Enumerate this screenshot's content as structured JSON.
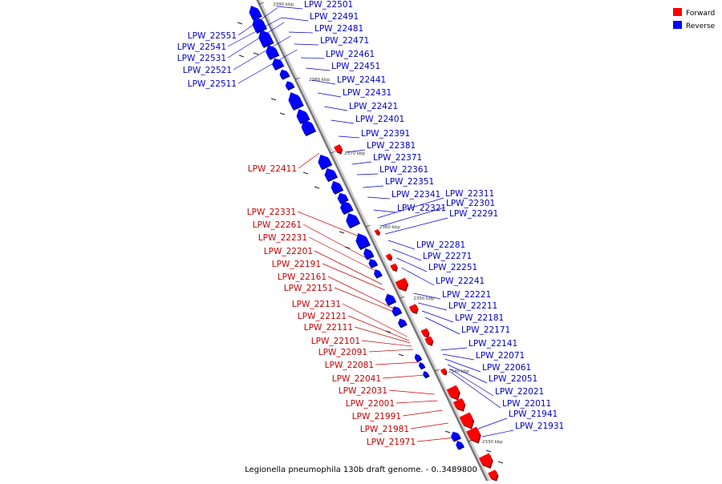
{
  "caption": "Legionella pneumophila 130b draft genome. - 0..3489800",
  "colors": {
    "forward": "#ff0000",
    "reverse": "#0000ff",
    "forward_label": "#c80000",
    "reverse_label": "#0000c8",
    "axis": "#777777",
    "tick": "#000000"
  },
  "legend": {
    "forward": "Forward",
    "reverse": "Reverse"
  },
  "ticks": [
    "2390 kbp",
    "2380 kbp",
    "2370 kbp",
    "2360 kbp",
    "2350 kbp",
    "2340 kbp",
    "2330 kbp"
  ],
  "reverse_genes": [
    "LPW_22551",
    "LPW_22541",
    "LPW_22531",
    "LPW_22521",
    "LPW_22511",
    "LPW_22501",
    "LPW_22491",
    "LPW_22481",
    "LPW_22471",
    "LPW_22461",
    "LPW_22451",
    "LPW_22441",
    "LPW_22431",
    "LPW_22421",
    "LPW_22401",
    "LPW_22391",
    "LPW_22381",
    "LPW_22371",
    "LPW_22361",
    "LPW_22351",
    "LPW_22341",
    "LPW_22321",
    "LPW_22311",
    "LPW_22301",
    "LPW_22291",
    "LPW_22281",
    "LPW_22271",
    "LPW_22251",
    "LPW_22241",
    "LPW_22221",
    "LPW_22211",
    "LPW_22181",
    "LPW_22171",
    "LPW_22141",
    "LPW_22071",
    "LPW_22061",
    "LPW_22051",
    "LPW_22021",
    "LPW_22011",
    "LPW_21941",
    "LPW_21931"
  ],
  "forward_genes": [
    "LPW_22411",
    "LPW_22331",
    "LPW_22261",
    "LPW_22231",
    "LPW_22201",
    "LPW_22191",
    "LPW_22161",
    "LPW_22151",
    "LPW_22131",
    "LPW_22121",
    "LPW_22111",
    "LPW_22101",
    "LPW_22091",
    "LPW_22081",
    "LPW_22041",
    "LPW_22031",
    "LPW_22001",
    "LPW_21991",
    "LPW_21981",
    "LPW_21971"
  ]
}
